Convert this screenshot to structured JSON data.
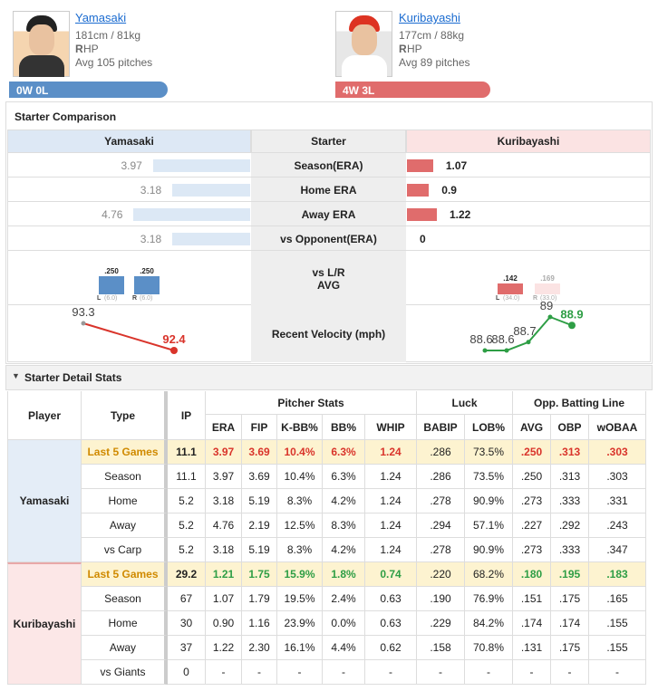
{
  "pitchers": [
    {
      "name": "Yamasaki",
      "body": "181cm / 81kg",
      "hand": "R",
      "hand_rest": "HP",
      "pitches": "Avg 105 pitches",
      "record": "0W 0L"
    },
    {
      "name": "Kuribayashi",
      "body": "177cm / 88kg",
      "hand": "R",
      "hand_rest": "HP",
      "pitches": "Avg 89 pitches",
      "record": "4W 3L"
    }
  ],
  "comparison": {
    "title": "Starter Comparison",
    "header": [
      "Yamasaki",
      "Starter",
      "Kuribayashi"
    ],
    "rows": [
      {
        "label": "Season(ERA)",
        "left": 3.97,
        "right": 1.07
      },
      {
        "label": "Home ERA",
        "left": 3.18,
        "right": 0.9
      },
      {
        "label": "Away ERA",
        "left": 4.76,
        "right": 1.22
      },
      {
        "label": "vs Opponent(ERA)",
        "left": 3.18,
        "right": 0
      }
    ],
    "lr": {
      "label": [
        "vs L/R",
        "AVG"
      ],
      "left": [
        {
          "avg": ".250",
          "side": "L",
          "n": "(6.0)"
        },
        {
          "avg": ".250",
          "side": "R",
          "n": "(6.0)"
        }
      ],
      "right": [
        {
          "avg": ".142",
          "side": "L",
          "n": "(34.0)"
        },
        {
          "avg": ".169",
          "side": "R",
          "n": "(33.0)"
        }
      ]
    },
    "velocity": {
      "label": "Recent Velocity (mph)",
      "left": [
        93.3,
        92.4
      ],
      "right": [
        88.6,
        88.6,
        88.7,
        89,
        88.9
      ]
    }
  },
  "detail": {
    "title": "Starter Detail Stats",
    "header": {
      "player": "Player",
      "type": "Type",
      "ip": "IP",
      "groups": [
        "Pitcher Stats",
        "Luck",
        "Opp. Batting Line"
      ],
      "cols": [
        "ERA",
        "FIP",
        "K-BB%",
        "BB%",
        "WHIP",
        "BABIP",
        "LOB%",
        "AVG",
        "OBP",
        "wOBAA"
      ]
    },
    "groups": [
      {
        "player": "Yamasaki",
        "rows": [
          {
            "type": "Last 5 Games",
            "ip": "11.1",
            "values": [
              "3.97",
              "3.69",
              "10.4%",
              "6.3%",
              "1.24",
              ".286",
              "73.5%",
              ".250",
              ".313",
              ".303"
            ]
          },
          {
            "type": "Season",
            "ip": "11.1",
            "values": [
              "3.97",
              "3.69",
              "10.4%",
              "6.3%",
              "1.24",
              ".286",
              "73.5%",
              ".250",
              ".313",
              ".303"
            ]
          },
          {
            "type": "Home",
            "ip": "5.2",
            "values": [
              "3.18",
              "5.19",
              "8.3%",
              "4.2%",
              "1.24",
              ".278",
              "90.9%",
              ".273",
              ".333",
              ".331"
            ]
          },
          {
            "type": "Away",
            "ip": "5.2",
            "values": [
              "4.76",
              "2.19",
              "12.5%",
              "8.3%",
              "1.24",
              ".294",
              "57.1%",
              ".227",
              ".292",
              ".243"
            ]
          },
          {
            "type": "vs Carp",
            "ip": "5.2",
            "values": [
              "3.18",
              "5.19",
              "8.3%",
              "4.2%",
              "1.24",
              ".278",
              "90.9%",
              ".273",
              ".333",
              ".347"
            ]
          }
        ]
      },
      {
        "player": "Kuribayashi",
        "rows": [
          {
            "type": "Last 5 Games",
            "ip": "29.2",
            "values": [
              "1.21",
              "1.75",
              "15.9%",
              "1.8%",
              "0.74",
              ".220",
              "68.2%",
              ".180",
              ".195",
              ".183"
            ]
          },
          {
            "type": "Season",
            "ip": "67",
            "values": [
              "1.07",
              "1.79",
              "19.5%",
              "2.4%",
              "0.63",
              ".190",
              "76.9%",
              ".151",
              ".175",
              ".165"
            ]
          },
          {
            "type": "Home",
            "ip": "30",
            "values": [
              "0.90",
              "1.16",
              "23.9%",
              "0.0%",
              "0.63",
              ".229",
              "84.2%",
              ".174",
              ".174",
              ".155"
            ]
          },
          {
            "type": "Away",
            "ip": "37",
            "values": [
              "1.22",
              "2.30",
              "16.1%",
              "4.4%",
              "0.62",
              ".158",
              "70.8%",
              ".131",
              ".175",
              ".155"
            ]
          },
          {
            "type": "vs Giants",
            "ip": "0",
            "values": [
              "-",
              "-",
              "-",
              "-",
              "-",
              "-",
              "-",
              "-",
              "-",
              "-"
            ]
          }
        ]
      }
    ]
  }
}
